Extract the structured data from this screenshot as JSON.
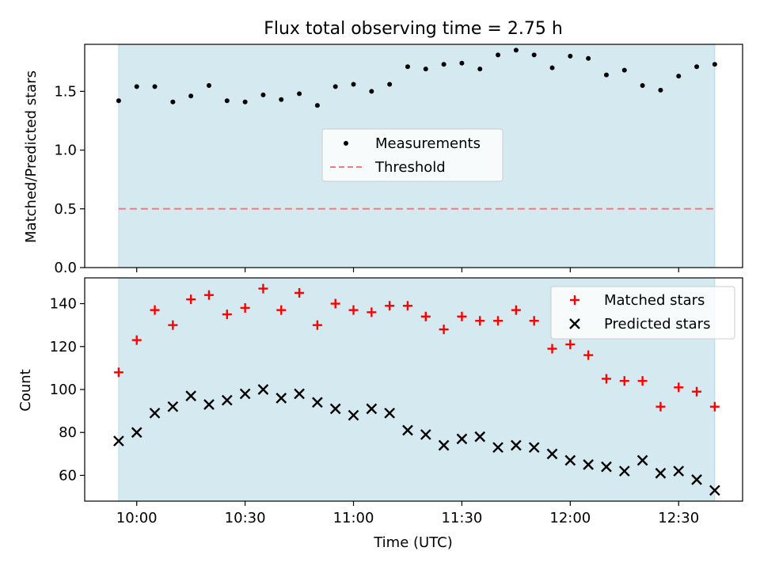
{
  "title": "Flux total observing time = 2.75 h",
  "colors": {
    "shade": "#d4eaf0",
    "shade_edge": "#b9dbe5",
    "threshold": "#f07c7c",
    "matched": "#ff0000",
    "predicted": "#000000",
    "measurement": "#000000"
  },
  "chart_data": [
    {
      "type": "scatter",
      "name": "ratio-panel",
      "ylabel": "Matched/Predicted stars",
      "xlabel": "",
      "ylim": [
        0,
        1.9
      ],
      "yticks": [
        0.0,
        0.5,
        1.0,
        1.5
      ],
      "ytick_labels": [
        "0.0",
        "0.5",
        "1.0",
        "1.5"
      ],
      "x_minutes": [
        -5,
        0,
        5,
        10,
        15,
        20,
        25,
        30,
        35,
        40,
        45,
        50,
        55,
        60,
        65,
        70,
        75,
        80,
        85,
        90,
        95,
        100,
        105,
        110,
        115,
        120,
        125,
        130,
        135,
        140,
        145,
        150,
        155,
        160
      ],
      "series": [
        {
          "name": "Measurements",
          "marker": "dot",
          "values": [
            1.42,
            1.54,
            1.54,
            1.41,
            1.46,
            1.55,
            1.42,
            1.41,
            1.47,
            1.43,
            1.48,
            1.38,
            1.54,
            1.56,
            1.5,
            1.56,
            1.71,
            1.69,
            1.73,
            1.74,
            1.69,
            1.81,
            1.85,
            1.81,
            1.7,
            1.8,
            1.78,
            1.64,
            1.68,
            1.55,
            1.51,
            1.63,
            1.71,
            1.73
          ]
        },
        {
          "name": "Threshold",
          "marker": "dashed-line",
          "value": 0.5
        }
      ],
      "legend": {
        "position": "center",
        "entries": [
          "Measurements",
          "Threshold"
        ]
      }
    },
    {
      "type": "scatter",
      "name": "count-panel",
      "ylabel": "Count",
      "xlabel": "Time (UTC)",
      "ylim": [
        48,
        152
      ],
      "yticks": [
        60,
        80,
        100,
        120,
        140
      ],
      "ytick_labels": [
        "60",
        "80",
        "100",
        "120",
        "140"
      ],
      "x_minutes": [
        -5,
        0,
        5,
        10,
        15,
        20,
        25,
        30,
        35,
        40,
        45,
        50,
        55,
        60,
        65,
        70,
        75,
        80,
        85,
        90,
        95,
        100,
        105,
        110,
        115,
        120,
        125,
        130,
        135,
        140,
        145,
        150,
        155,
        160
      ],
      "series": [
        {
          "name": "Matched stars",
          "marker": "plus",
          "values": [
            108,
            123,
            137,
            130,
            142,
            144,
            135,
            138,
            147,
            137,
            145,
            130,
            140,
            137,
            136,
            139,
            139,
            134,
            128,
            134,
            132,
            132,
            137,
            132,
            119,
            121,
            116,
            105,
            104,
            104,
            92,
            101,
            99,
            92
          ]
        },
        {
          "name": "Predicted stars",
          "marker": "x",
          "values": [
            76,
            80,
            89,
            92,
            97,
            93,
            95,
            98,
            100,
            96,
            98,
            94,
            91,
            88,
            91,
            89,
            81,
            79,
            74,
            77,
            78,
            73,
            74,
            73,
            70,
            67,
            65,
            64,
            62,
            67,
            61,
            62,
            58,
            53
          ]
        }
      ],
      "legend": {
        "position": "top-right",
        "entries": [
          "Matched stars",
          "Predicted stars"
        ]
      }
    }
  ],
  "x_axis": {
    "label": "Time (UTC)",
    "xlim_minutes": [
      -14.4,
      167.7
    ],
    "shade_minutes": [
      -5,
      160
    ],
    "ticks_minutes": [
      0,
      30,
      60,
      90,
      120,
      150
    ],
    "tick_labels": [
      "10:00",
      "10:30",
      "11:00",
      "11:30",
      "12:00",
      "12:30"
    ]
  }
}
